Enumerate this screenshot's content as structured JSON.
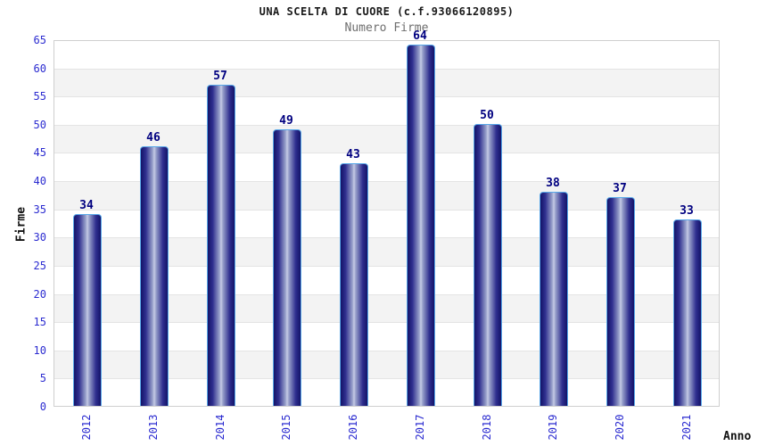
{
  "chart_data": {
    "type": "bar",
    "title": "UNA SCELTA DI CUORE (c.f.93066120895)",
    "subtitle": "Numero Firme",
    "xlabel": "Anno",
    "ylabel": "Firme",
    "categories": [
      "2012",
      "2013",
      "2014",
      "2015",
      "2016",
      "2017",
      "2018",
      "2019",
      "2020",
      "2021"
    ],
    "values": [
      34,
      46,
      57,
      49,
      43,
      64,
      50,
      38,
      37,
      33
    ],
    "ylim": [
      0,
      65
    ],
    "ytick_step": 5,
    "yticks": [
      0,
      5,
      10,
      15,
      20,
      25,
      30,
      35,
      40,
      45,
      50,
      55,
      60,
      65
    ],
    "legend": "none",
    "grid": "horizontal alternating bands every 5 units",
    "bar_style": "vertical cylinder gradient, rounded top corners",
    "colors": {
      "title_text": "#1a1a1a",
      "subtitle_text": "#6e6e6e",
      "tick_label": "#2b2bd0",
      "value_label": "#000080",
      "axis_title": "#111111",
      "bar_edge_dark": "#141468",
      "bar_mid": "#2e2e8e",
      "bar_center_light": "#c6cce6",
      "bar_border": "#57a7e8",
      "band_alt": "#f3f3f3",
      "band_base": "#ffffff",
      "grid_line": "#e4e4e4",
      "plot_border": "#cfcfcf"
    }
  }
}
